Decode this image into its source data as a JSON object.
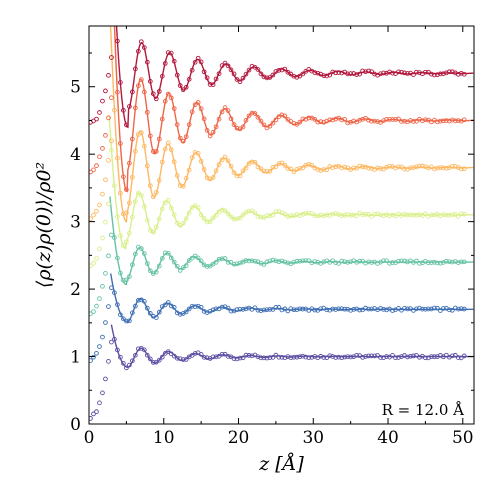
{
  "chart_data": {
    "type": "line",
    "xlabel": "z [Å]",
    "ylabel": "⟨ρ(z)ρ(0)⟩/ρ0²",
    "xlim": [
      0,
      51.5
    ],
    "ylim": [
      0,
      5.9
    ],
    "xticks": [
      0,
      10,
      20,
      30,
      40,
      50
    ],
    "yticks": [
      0,
      1,
      2,
      3,
      4,
      5
    ],
    "grid": false,
    "legend": "none",
    "annotation": "R = 12.0 Å",
    "series_style": "points = simulation (open circles), solid line = fit; curves vertically offset",
    "series": [
      {
        "offset": 1.0,
        "color": "#5e4fa2",
        "min_z": 5.2,
        "min_value": 0.84,
        "first_peak_z": 7.0,
        "first_peak_value": 1.16,
        "period": 3.65,
        "decay_length": 7.0,
        "end_value": 1.0
      },
      {
        "offset": 1.7,
        "color": "#3f6fb3",
        "min_z": 5.1,
        "min_value": 1.52,
        "first_peak_z": 7.0,
        "first_peak_value": 1.92,
        "period": 3.65,
        "decay_length": 7.0,
        "end_value": 1.7
      },
      {
        "offset": 2.4,
        "color": "#66c2a5",
        "min_z": 5.0,
        "min_value": 2.07,
        "first_peak_z": 7.0,
        "first_peak_value": 2.62,
        "period": 3.65,
        "decay_length": 7.5,
        "end_value": 2.4
      },
      {
        "offset": 3.1,
        "color": "#d9ef8b",
        "min_z": 4.9,
        "min_value": 2.6,
        "first_peak_z": 6.9,
        "first_peak_value": 3.43,
        "period": 3.7,
        "decay_length": 8.0,
        "end_value": 3.1
      },
      {
        "offset": 3.8,
        "color": "#fdb863",
        "min_z": 5.0,
        "min_value": 3.0,
        "first_peak_z": 6.9,
        "first_peak_value": 4.35,
        "period": 3.75,
        "decay_length": 8.5,
        "end_value": 3.8
      },
      {
        "offset": 4.5,
        "color": "#ef6548",
        "min_z": 5.1,
        "min_value": 3.45,
        "first_peak_z": 7.0,
        "first_peak_value": 4.95,
        "period": 3.75,
        "decay_length": 9.0,
        "end_value": 4.5
      },
      {
        "offset": 5.2,
        "color": "#b2173c",
        "min_z": 5.2,
        "min_value": 4.4,
        "first_peak_z": 7.1,
        "first_peak_value": 5.5,
        "period": 3.75,
        "decay_length": 9.5,
        "end_value": 5.2
      }
    ]
  }
}
